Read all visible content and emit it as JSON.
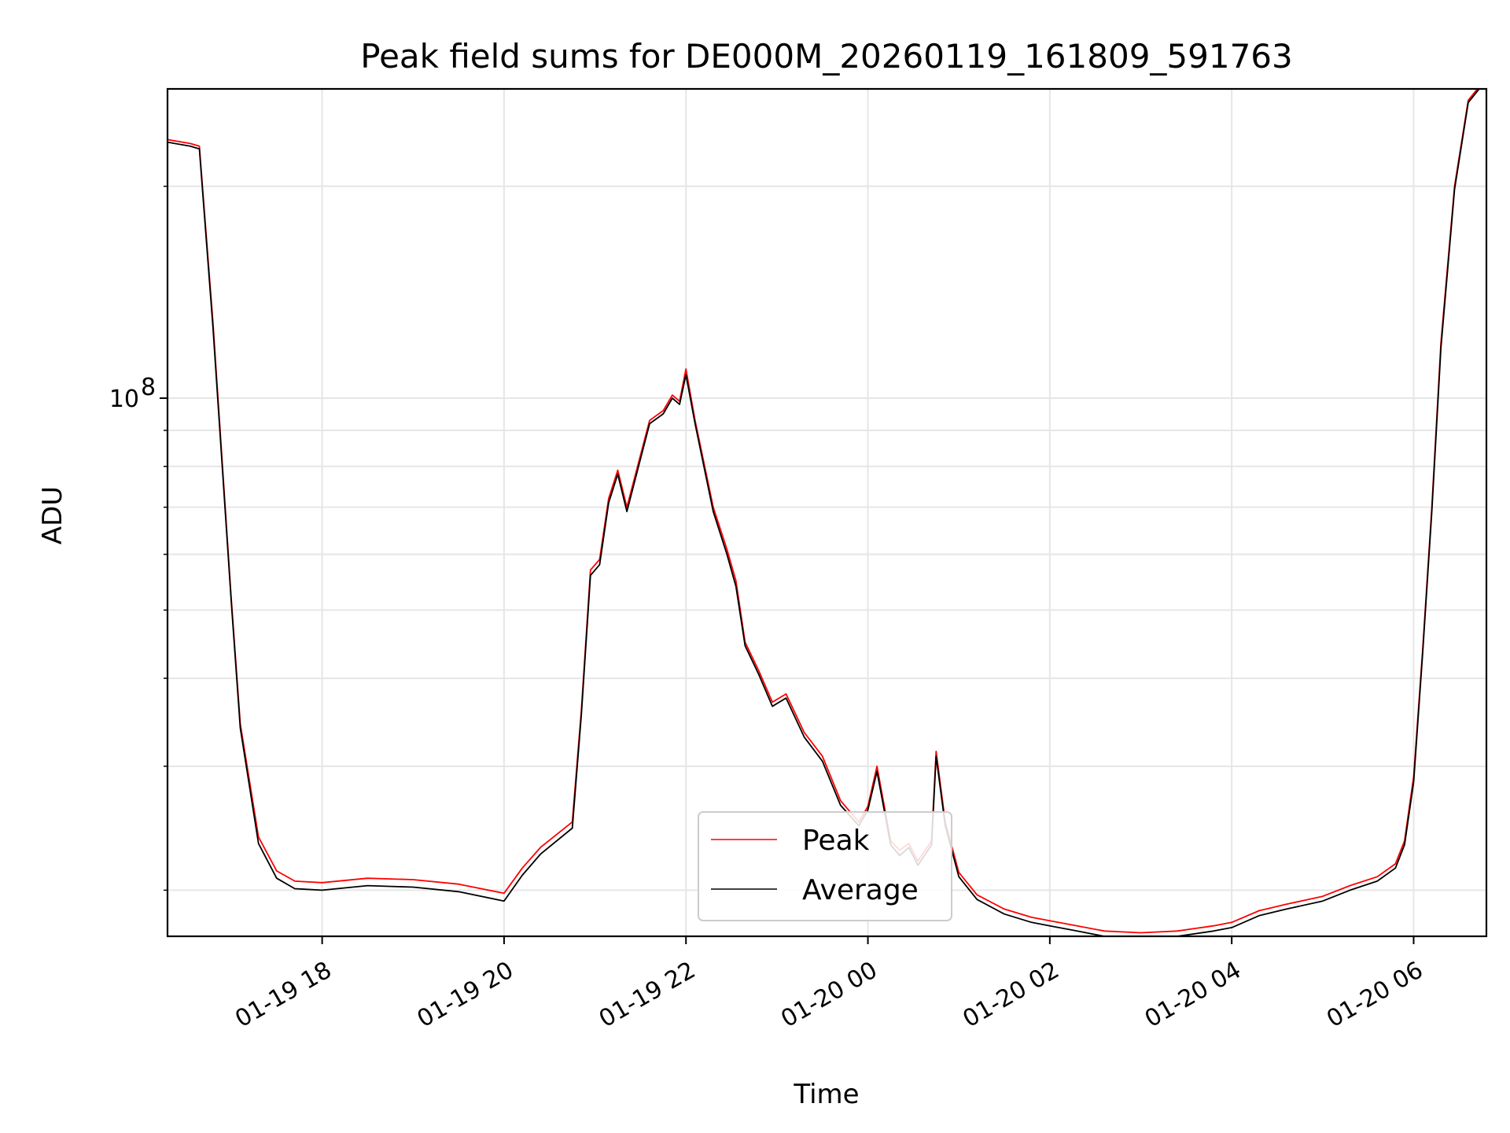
{
  "chart_data": {
    "type": "line",
    "title": "Peak field sums for DE000M_20260119_161809_591763",
    "xlabel": "Time",
    "ylabel": "ADU",
    "yscale": "log",
    "grid": true,
    "legend_position": "bottom-center",
    "x_unit": "hours since 2026-01-19 00:00",
    "xlim": [
      16.3,
      30.8
    ],
    "ylim": [
      17200000,
      275000000
    ],
    "x_ticks": [
      {
        "value": 18,
        "label": "01-19 18"
      },
      {
        "value": 20,
        "label": "01-19 20"
      },
      {
        "value": 22,
        "label": "01-19 22"
      },
      {
        "value": 24,
        "label": "01-20 00"
      },
      {
        "value": 26,
        "label": "01-20 02"
      },
      {
        "value": 28,
        "label": "01-20 04"
      },
      {
        "value": 30,
        "label": "01-20 06"
      }
    ],
    "y_major_ticks": [
      {
        "value": 100000000,
        "base": "10",
        "exp": "8"
      }
    ],
    "y_minor_ticks": [
      20000000,
      30000000,
      40000000,
      50000000,
      60000000,
      70000000,
      80000000,
      90000000,
      200000000
    ],
    "x": [
      16.3,
      16.55,
      16.65,
      16.8,
      17.0,
      17.1,
      17.3,
      17.5,
      17.7,
      18.0,
      18.5,
      19.0,
      19.5,
      20.0,
      20.2,
      20.4,
      20.75,
      20.85,
      20.95,
      21.05,
      21.15,
      21.25,
      21.35,
      21.5,
      21.6,
      21.75,
      21.85,
      21.93,
      22.0,
      22.1,
      22.3,
      22.45,
      22.55,
      22.65,
      22.8,
      22.95,
      23.1,
      23.3,
      23.5,
      23.7,
      23.9,
      24.0,
      24.1,
      24.25,
      24.35,
      24.45,
      24.55,
      24.7,
      24.75,
      24.85,
      25.0,
      25.2,
      25.5,
      25.8,
      26.0,
      26.3,
      26.6,
      27.0,
      27.4,
      27.8,
      28.0,
      28.3,
      28.6,
      29.0,
      29.3,
      29.6,
      29.8,
      29.9,
      30.0,
      30.1,
      30.2,
      30.3,
      30.45,
      30.6,
      30.75,
      30.8
    ],
    "series": [
      {
        "name": "Peak",
        "color": "#ff0000",
        "values": [
          233000000,
          230000000,
          228000000,
          128000000,
          52000000,
          34500000,
          23800000,
          21300000,
          20600000,
          20500000,
          20800000,
          20700000,
          20400000,
          19800000,
          21500000,
          23000000,
          25000000,
          36000000,
          57000000,
          59000000,
          72000000,
          79000000,
          70000000,
          83000000,
          93000000,
          96000000,
          101000000,
          99000000,
          110000000,
          93000000,
          70000000,
          61000000,
          55000000,
          45000000,
          41000000,
          37000000,
          38000000,
          33500000,
          31000000,
          26800000,
          25000000,
          26300000,
          30000000,
          23500000,
          22800000,
          23300000,
          22000000,
          23500000,
          31500000,
          25000000,
          21200000,
          19700000,
          18800000,
          18300000,
          18100000,
          17800000,
          17500000,
          17400000,
          17500000,
          17800000,
          18000000,
          18700000,
          19100000,
          19600000,
          20300000,
          20900000,
          21800000,
          23500000,
          29000000,
          44000000,
          70000000,
          120000000,
          200000000,
          265000000,
          280000000,
          280000000
        ]
      },
      {
        "name": "Average",
        "color": "#000000",
        "values": [
          231000000,
          228000000,
          226000000,
          126000000,
          51500000,
          34000000,
          23300000,
          20800000,
          20100000,
          20000000,
          20300000,
          20200000,
          19900000,
          19300000,
          21000000,
          22500000,
          24500000,
          35500000,
          56000000,
          58000000,
          71000000,
          78000000,
          69000000,
          82000000,
          92000000,
          95000000,
          100000000,
          98000000,
          108000000,
          92000000,
          69000000,
          60000000,
          54000000,
          44500000,
          40500000,
          36500000,
          37500000,
          33000000,
          30500000,
          26400000,
          24700000,
          26000000,
          29500000,
          23200000,
          22400000,
          23000000,
          21700000,
          23200000,
          31000000,
          24700000,
          20900000,
          19400000,
          18500000,
          18000000,
          17800000,
          17500000,
          17200000,
          17100000,
          17200000,
          17500000,
          17700000,
          18400000,
          18800000,
          19300000,
          20000000,
          20600000,
          21500000,
          23200000,
          28500000,
          43500000,
          69000000,
          118000000,
          198000000,
          263000000,
          278000000,
          278000000
        ]
      }
    ]
  }
}
